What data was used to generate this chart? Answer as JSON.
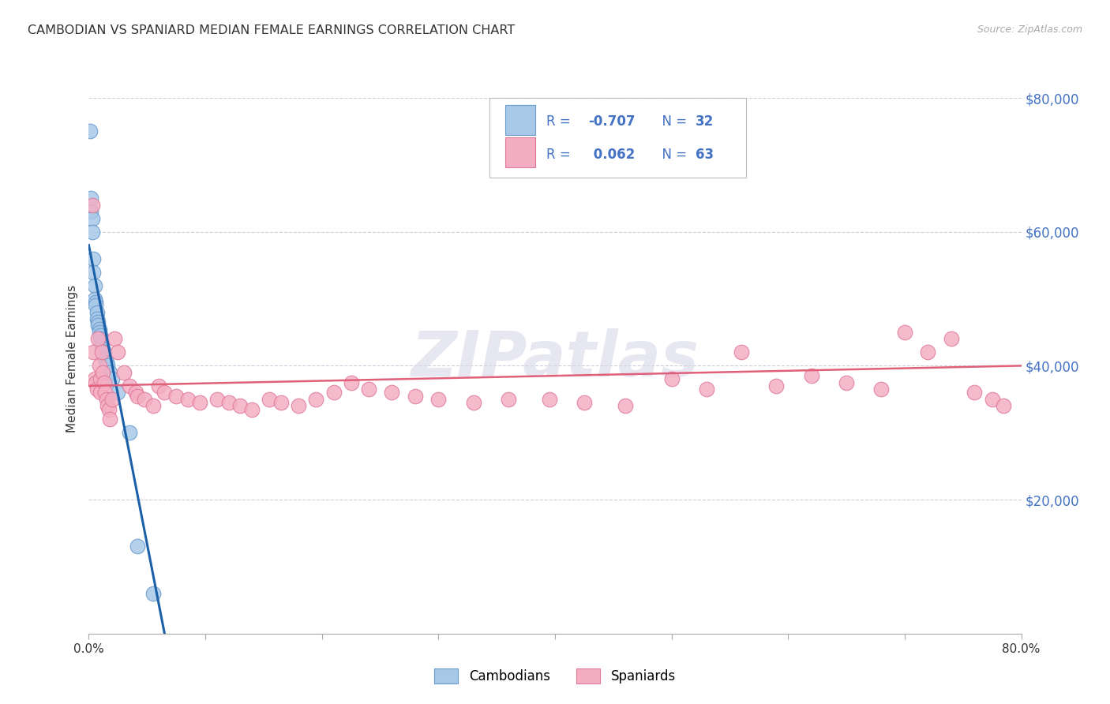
{
  "title": "CAMBODIAN VS SPANIARD MEDIAN FEMALE EARNINGS CORRELATION CHART",
  "source": "Source: ZipAtlas.com",
  "ylabel": "Median Female Earnings",
  "cambodian_color": "#a8c8e8",
  "cambodian_edge_color": "#6699cc",
  "spaniard_color": "#f4aec4",
  "spaniard_edge_color": "#e07898",
  "blue_line_color": "#1a5fa8",
  "pink_line_color": "#e0607a",
  "grid_color": "#c8c8d8",
  "right_tick_color": "#4472c4",
  "text_color": "#333333",
  "background_color": "#ffffff",
  "legend_text_color": "#4472c4",
  "watermark_color": "#d8d8e8",
  "cam_x": [
    0.001,
    0.002,
    0.002,
    0.003,
    0.003,
    0.004,
    0.004,
    0.005,
    0.005,
    0.006,
    0.006,
    0.007,
    0.007,
    0.008,
    0.008,
    0.009,
    0.009,
    0.01,
    0.01,
    0.011,
    0.011,
    0.012,
    0.013,
    0.014,
    0.015,
    0.016,
    0.018,
    0.02,
    0.025,
    0.035,
    0.042,
    0.055
  ],
  "cam_y": [
    75000,
    65000,
    63000,
    62000,
    60000,
    56000,
    54000,
    52000,
    50000,
    49500,
    49000,
    48000,
    47000,
    46500,
    46000,
    45500,
    45000,
    44500,
    44000,
    43500,
    43000,
    42500,
    42000,
    41000,
    40500,
    40000,
    39000,
    38000,
    36000,
    30000,
    13000,
    6000
  ],
  "spa_x": [
    0.003,
    0.004,
    0.005,
    0.006,
    0.007,
    0.008,
    0.009,
    0.01,
    0.01,
    0.011,
    0.012,
    0.013,
    0.014,
    0.015,
    0.016,
    0.017,
    0.018,
    0.02,
    0.022,
    0.025,
    0.03,
    0.035,
    0.04,
    0.042,
    0.048,
    0.055,
    0.06,
    0.065,
    0.075,
    0.085,
    0.095,
    0.11,
    0.12,
    0.13,
    0.14,
    0.155,
    0.165,
    0.18,
    0.195,
    0.21,
    0.225,
    0.24,
    0.26,
    0.28,
    0.3,
    0.33,
    0.36,
    0.395,
    0.425,
    0.46,
    0.5,
    0.53,
    0.56,
    0.59,
    0.62,
    0.65,
    0.68,
    0.7,
    0.72,
    0.74,
    0.76,
    0.775,
    0.785
  ],
  "spa_y": [
    64000,
    42000,
    38000,
    37500,
    36500,
    44000,
    40000,
    36000,
    38000,
    42000,
    39000,
    37500,
    36000,
    35000,
    34000,
    33500,
    32000,
    35000,
    44000,
    42000,
    39000,
    37000,
    36000,
    35500,
    35000,
    34000,
    37000,
    36000,
    35500,
    35000,
    34500,
    35000,
    34500,
    34000,
    33500,
    35000,
    34500,
    34000,
    35000,
    36000,
    37500,
    36500,
    36000,
    35500,
    35000,
    34500,
    35000,
    35000,
    34500,
    34000,
    38000,
    36500,
    42000,
    37000,
    38500,
    37500,
    36500,
    45000,
    42000,
    44000,
    36000,
    35000,
    34000
  ],
  "cam_line_x": [
    0.0,
    0.065
  ],
  "cam_line_y": [
    58000,
    0
  ],
  "spa_line_x": [
    0.0,
    0.8
  ],
  "spa_line_y": [
    37000,
    40000
  ],
  "xlim": [
    0,
    0.8
  ],
  "ylim": [
    0,
    82000
  ],
  "xticks": [
    0.0,
    0.1,
    0.2,
    0.3,
    0.4,
    0.5,
    0.6,
    0.7,
    0.8
  ],
  "xticklabels": [
    "0.0%",
    "",
    "",
    "",
    "",
    "",
    "",
    "",
    "80.0%"
  ],
  "yticks": [
    0,
    20000,
    40000,
    60000,
    80000
  ],
  "yticklabels_right": [
    "",
    "$20,000",
    "$40,000",
    "$60,000",
    "$80,000"
  ]
}
